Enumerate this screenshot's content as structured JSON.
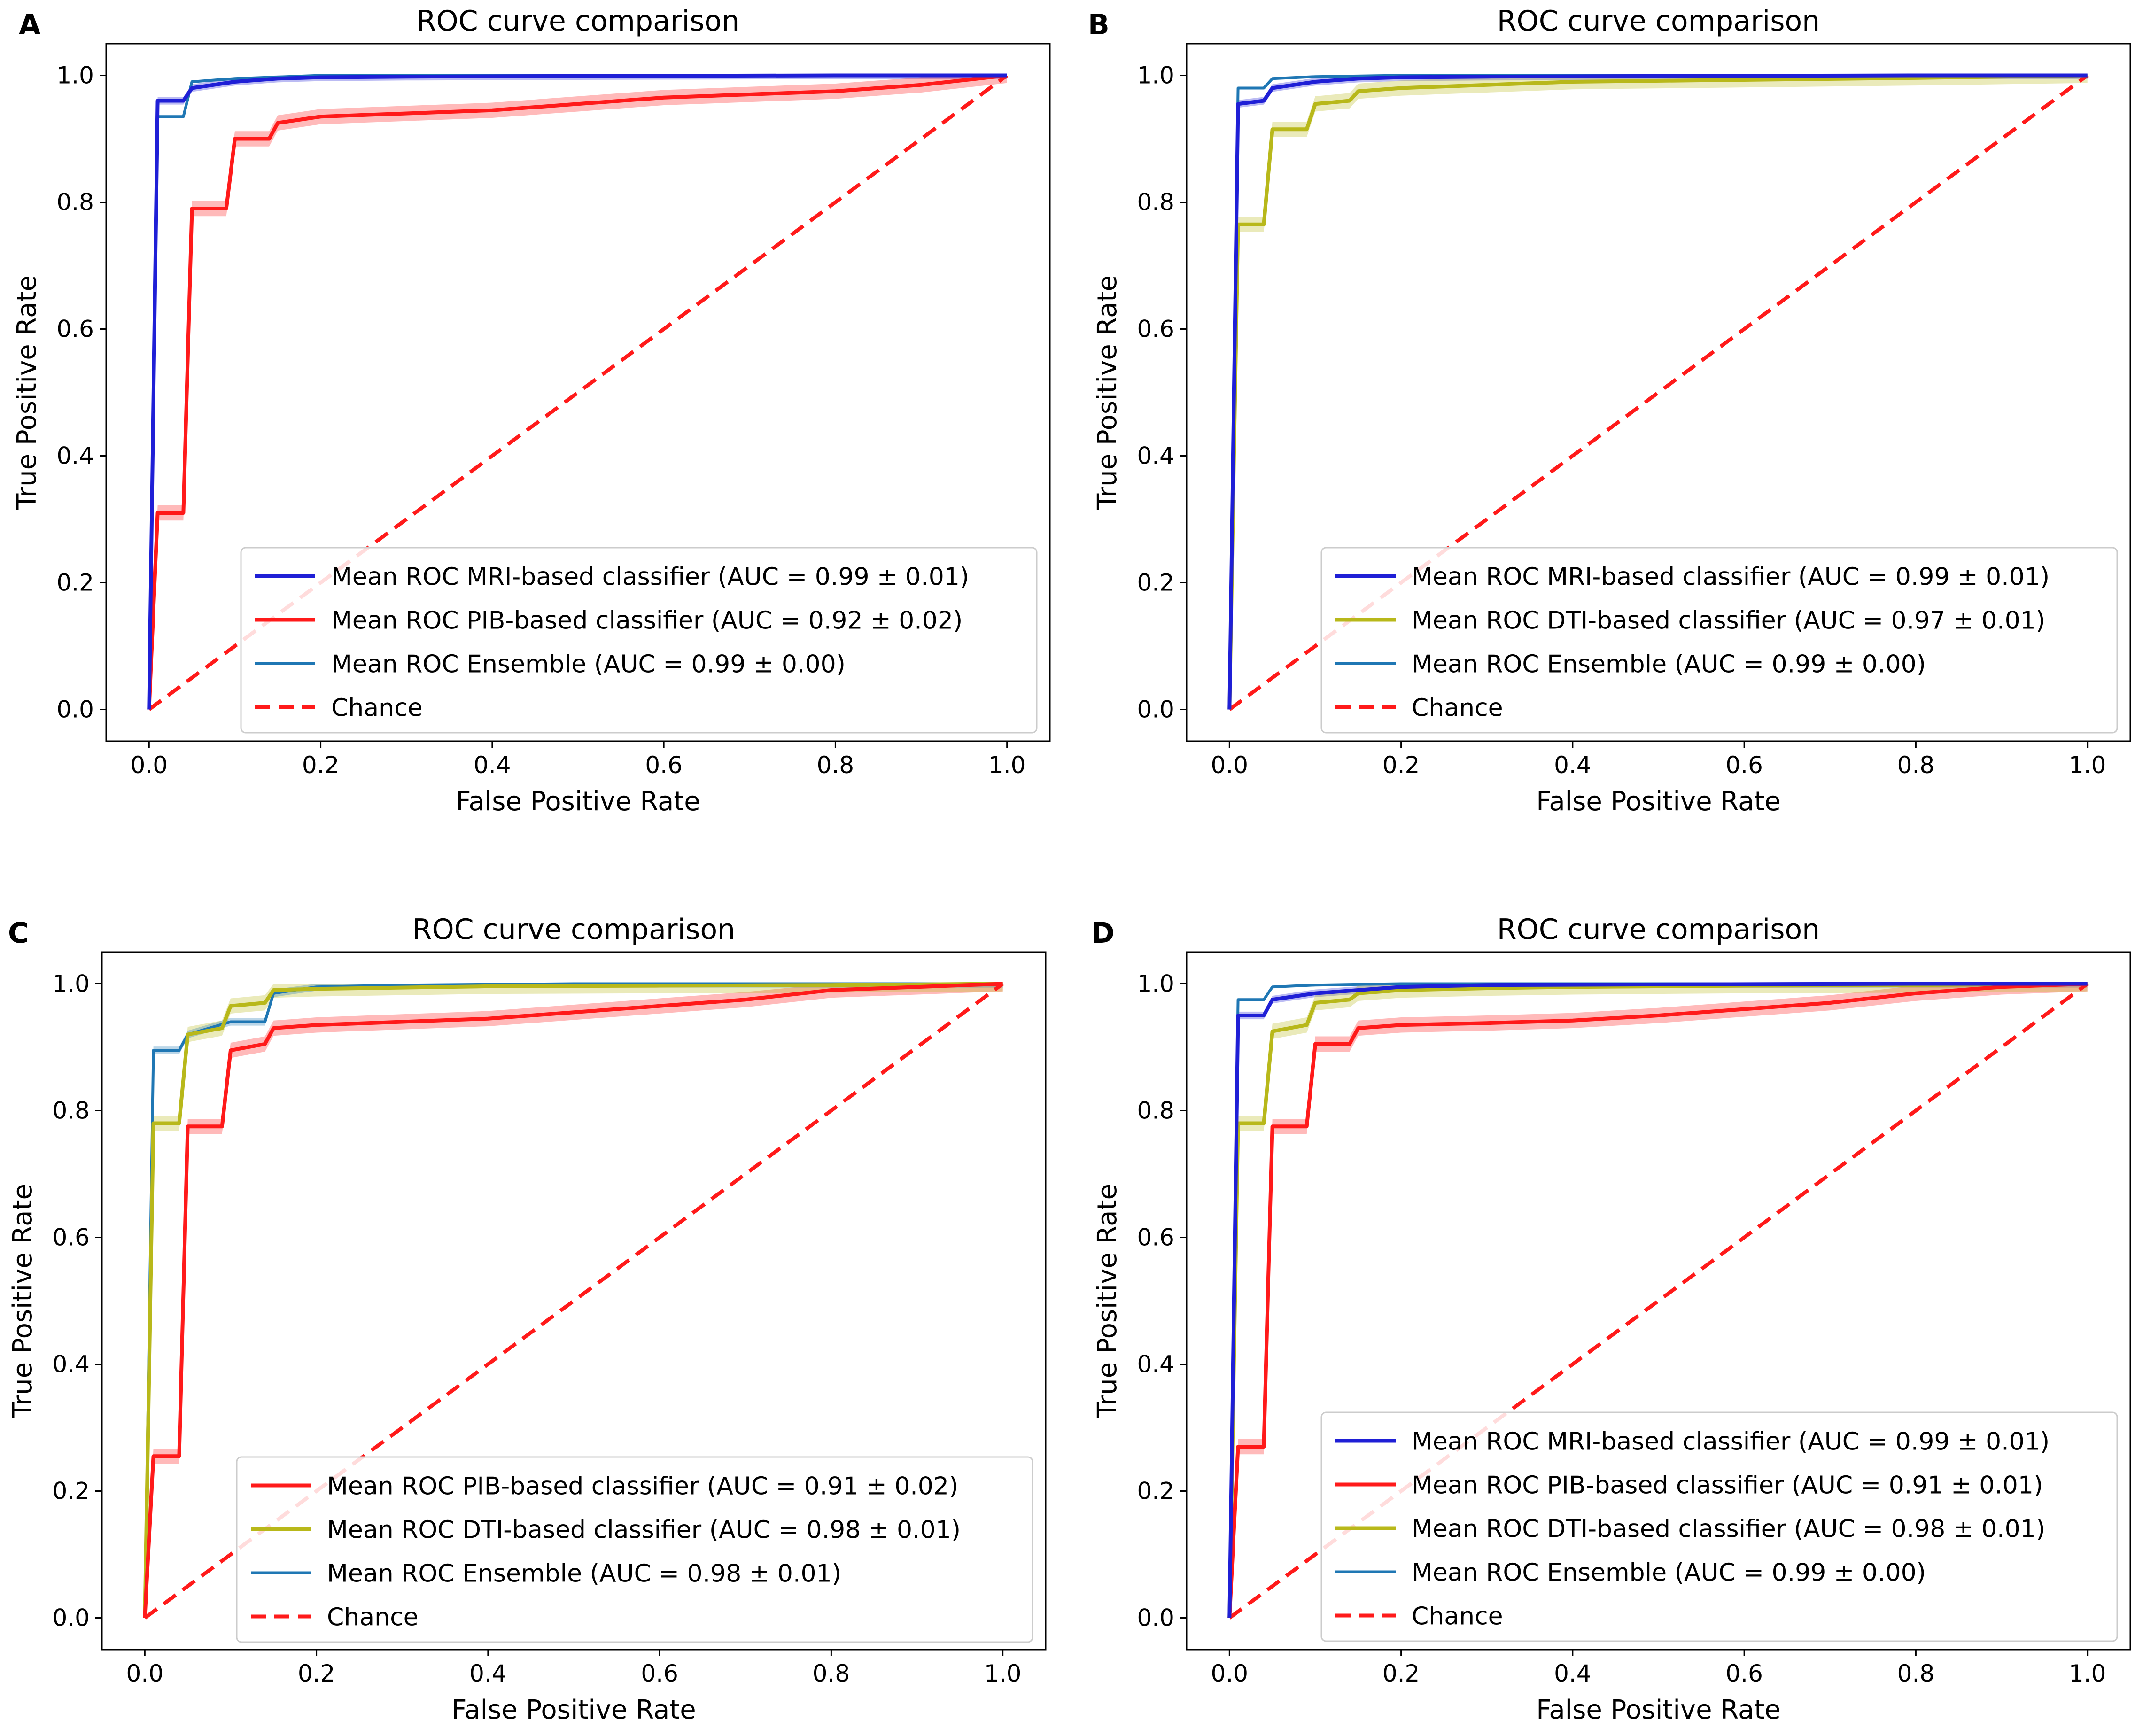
{
  "figure": {
    "legend_labels": {
      "mri": "Mean ROC MRI-based classifier",
      "pib": "Mean ROC PIB-based classifier",
      "dti": "Mean ROC DTI-based classifier",
      "ens": "Mean ROC Ensemble",
      "chance": "Chance"
    }
  },
  "colors": {
    "mri": "#1f1fd6",
    "pib": "#ff1a1a",
    "dti": "#b8b81a",
    "ens": "#1f77b4",
    "chance": "#ff1a1a"
  },
  "chart_data": [
    {
      "panel": "A",
      "type": "line",
      "title": "ROC curve comparison",
      "xlabel": "False Positive Rate",
      "ylabel": "True Positive Rate",
      "xlim": [
        -0.05,
        1.05
      ],
      "ylim": [
        -0.05,
        1.05
      ],
      "xticks": [
        "0.0",
        "0.2",
        "0.4",
        "0.6",
        "0.8",
        "1.0"
      ],
      "yticks": [
        "0.0",
        "0.2",
        "0.4",
        "0.6",
        "0.8",
        "1.0"
      ],
      "legend_position": "lower right",
      "series": [
        {
          "key": "mri",
          "name": "Mean ROC MRI-based classifier (AUC = 0.99 ± 0.01)",
          "band": 0.006,
          "x": [
            0,
            0.01,
            0.01,
            0.04,
            0.05,
            0.1,
            0.15,
            0.2,
            0.3,
            0.5,
            0.8,
            1.0
          ],
          "y": [
            0,
            0.96,
            0.96,
            0.96,
            0.98,
            0.99,
            0.995,
            0.997,
            0.998,
            0.999,
            1.0,
            1.0
          ]
        },
        {
          "key": "pib",
          "name": "Mean ROC PIB-based classifier (AUC = 0.92 ± 0.02)",
          "band": 0.012,
          "x": [
            0,
            0.01,
            0.04,
            0.05,
            0.09,
            0.1,
            0.14,
            0.15,
            0.2,
            0.3,
            0.4,
            0.5,
            0.6,
            0.7,
            0.8,
            0.9,
            1.0
          ],
          "y": [
            0,
            0.31,
            0.31,
            0.79,
            0.79,
            0.9,
            0.9,
            0.925,
            0.935,
            0.94,
            0.945,
            0.955,
            0.965,
            0.97,
            0.975,
            0.985,
            1.0
          ]
        },
        {
          "key": "ens",
          "name": "Mean ROC Ensemble (AUC = 0.99 ± 0.00)",
          "band": 0,
          "x": [
            0,
            0.01,
            0.04,
            0.05,
            0.1,
            0.2,
            0.4,
            1.0
          ],
          "y": [
            0,
            0.935,
            0.935,
            0.99,
            0.995,
            1.0,
            1.0,
            1.0
          ]
        },
        {
          "key": "chance",
          "name": "Chance",
          "dashed": true,
          "x": [
            0,
            1
          ],
          "y": [
            0,
            1
          ]
        }
      ]
    },
    {
      "panel": "B",
      "type": "line",
      "title": "ROC curve comparison",
      "xlabel": "False Positive Rate",
      "ylabel": "True Positive Rate",
      "xlim": [
        -0.05,
        1.05
      ],
      "ylim": [
        -0.05,
        1.05
      ],
      "xticks": [
        "0.0",
        "0.2",
        "0.4",
        "0.6",
        "0.8",
        "1.0"
      ],
      "yticks": [
        "0.0",
        "0.2",
        "0.4",
        "0.6",
        "0.8",
        "1.0"
      ],
      "legend_position": "lower right",
      "series": [
        {
          "key": "mri",
          "name": "Mean ROC MRI-based classifier (AUC = 0.99 ± 0.01)",
          "band": 0.006,
          "x": [
            0,
            0.01,
            0.01,
            0.04,
            0.05,
            0.1,
            0.15,
            0.2,
            0.3,
            0.5,
            0.8,
            1.0
          ],
          "y": [
            0,
            0.955,
            0.955,
            0.96,
            0.98,
            0.99,
            0.995,
            0.997,
            0.998,
            0.999,
            1.0,
            1.0
          ]
        },
        {
          "key": "dti",
          "name": "Mean ROC DTI-based classifier (AUC = 0.97 ± 0.01)",
          "band": 0.012,
          "x": [
            0,
            0.01,
            0.04,
            0.05,
            0.09,
            0.1,
            0.14,
            0.15,
            0.2,
            0.3,
            0.4,
            0.6,
            0.8,
            1.0
          ],
          "y": [
            0,
            0.765,
            0.765,
            0.915,
            0.915,
            0.955,
            0.96,
            0.975,
            0.98,
            0.985,
            0.99,
            0.993,
            0.996,
            1.0
          ]
        },
        {
          "key": "ens",
          "name": "Mean ROC Ensemble (AUC = 0.99 ± 0.00)",
          "band": 0,
          "x": [
            0,
            0.01,
            0.04,
            0.05,
            0.1,
            0.2,
            0.4,
            1.0
          ],
          "y": [
            0,
            0.98,
            0.98,
            0.995,
            0.998,
            1.0,
            1.0,
            1.0
          ]
        },
        {
          "key": "chance",
          "name": "Chance",
          "dashed": true,
          "x": [
            0,
            1
          ],
          "y": [
            0,
            1
          ]
        }
      ]
    },
    {
      "panel": "C",
      "type": "line",
      "title": "ROC curve comparison",
      "xlabel": "False Positive Rate",
      "ylabel": "True Positive Rate",
      "xlim": [
        -0.05,
        1.05
      ],
      "ylim": [
        -0.05,
        1.05
      ],
      "xticks": [
        "0.0",
        "0.2",
        "0.4",
        "0.6",
        "0.8",
        "1.0"
      ],
      "yticks": [
        "0.0",
        "0.2",
        "0.4",
        "0.6",
        "0.8",
        "1.0"
      ],
      "legend_position": "lower right",
      "series": [
        {
          "key": "pib",
          "name": "Mean ROC PIB-based classifier (AUC = 0.91 ± 0.02)",
          "band": 0.012,
          "x": [
            0,
            0.01,
            0.04,
            0.05,
            0.09,
            0.1,
            0.14,
            0.15,
            0.2,
            0.3,
            0.4,
            0.5,
            0.6,
            0.7,
            0.8,
            0.9,
            1.0
          ],
          "y": [
            0,
            0.255,
            0.255,
            0.775,
            0.775,
            0.895,
            0.905,
            0.93,
            0.935,
            0.94,
            0.945,
            0.955,
            0.965,
            0.975,
            0.99,
            0.995,
            1.0
          ]
        },
        {
          "key": "dti",
          "name": "Mean ROC DTI-based classifier (AUC = 0.98 ± 0.01)",
          "band": 0.012,
          "x": [
            0,
            0.01,
            0.04,
            0.05,
            0.09,
            0.1,
            0.14,
            0.15,
            0.2,
            0.3,
            0.4,
            0.6,
            0.8,
            1.0
          ],
          "y": [
            0,
            0.78,
            0.78,
            0.92,
            0.93,
            0.965,
            0.97,
            0.99,
            0.992,
            0.994,
            0.996,
            0.997,
            0.998,
            1.0
          ]
        },
        {
          "key": "ens",
          "name": "Mean ROC Ensemble (AUC = 0.98 ± 0.01)",
          "band": 0.006,
          "x": [
            0,
            0.01,
            0.04,
            0.05,
            0.1,
            0.14,
            0.15,
            0.2,
            0.3,
            0.5,
            1.0
          ],
          "y": [
            0,
            0.895,
            0.895,
            0.92,
            0.94,
            0.94,
            0.985,
            0.995,
            0.998,
            1.0,
            1.0
          ]
        },
        {
          "key": "chance",
          "name": "Chance",
          "dashed": true,
          "x": [
            0,
            1
          ],
          "y": [
            0,
            1
          ]
        }
      ]
    },
    {
      "panel": "D",
      "type": "line",
      "title": "ROC curve comparison",
      "xlabel": "False Positive Rate",
      "ylabel": "True Positive Rate",
      "xlim": [
        -0.05,
        1.05
      ],
      "ylim": [
        -0.05,
        1.05
      ],
      "xticks": [
        "0.0",
        "0.2",
        "0.4",
        "0.6",
        "0.8",
        "1.0"
      ],
      "yticks": [
        "0.0",
        "0.2",
        "0.4",
        "0.6",
        "0.8",
        "1.0"
      ],
      "legend_position": "lower right",
      "series": [
        {
          "key": "mri",
          "name": "Mean ROC MRI-based classifier (AUC = 0.99 ± 0.01)",
          "band": 0.006,
          "x": [
            0,
            0.01,
            0.04,
            0.05,
            0.1,
            0.15,
            0.2,
            0.3,
            0.5,
            0.8,
            1.0
          ],
          "y": [
            0,
            0.95,
            0.95,
            0.975,
            0.985,
            0.99,
            0.995,
            0.998,
            0.999,
            1.0,
            1.0
          ]
        },
        {
          "key": "pib",
          "name": "Mean ROC PIB-based classifier (AUC = 0.91 ± 0.01)",
          "band": 0.012,
          "x": [
            0,
            0.01,
            0.04,
            0.05,
            0.09,
            0.1,
            0.14,
            0.15,
            0.2,
            0.3,
            0.4,
            0.5,
            0.6,
            0.7,
            0.8,
            0.9,
            1.0
          ],
          "y": [
            0,
            0.27,
            0.27,
            0.775,
            0.775,
            0.905,
            0.905,
            0.93,
            0.935,
            0.938,
            0.942,
            0.95,
            0.96,
            0.97,
            0.985,
            0.995,
            1.0
          ]
        },
        {
          "key": "dti",
          "name": "Mean ROC DTI-based classifier (AUC = 0.98 ± 0.01)",
          "band": 0.012,
          "x": [
            0,
            0.01,
            0.04,
            0.05,
            0.09,
            0.1,
            0.14,
            0.15,
            0.2,
            0.3,
            0.4,
            0.6,
            0.8,
            1.0
          ],
          "y": [
            0,
            0.78,
            0.78,
            0.925,
            0.935,
            0.97,
            0.975,
            0.985,
            0.99,
            0.993,
            0.995,
            0.997,
            0.998,
            1.0
          ]
        },
        {
          "key": "ens",
          "name": "Mean ROC Ensemble (AUC = 0.99 ± 0.00)",
          "band": 0,
          "x": [
            0,
            0.01,
            0.04,
            0.05,
            0.1,
            0.2,
            0.4,
            1.0
          ],
          "y": [
            0,
            0.975,
            0.975,
            0.995,
            0.998,
            1.0,
            1.0,
            1.0
          ]
        },
        {
          "key": "chance",
          "name": "Chance",
          "dashed": true,
          "x": [
            0,
            1
          ],
          "y": [
            0,
            1
          ]
        }
      ]
    }
  ]
}
